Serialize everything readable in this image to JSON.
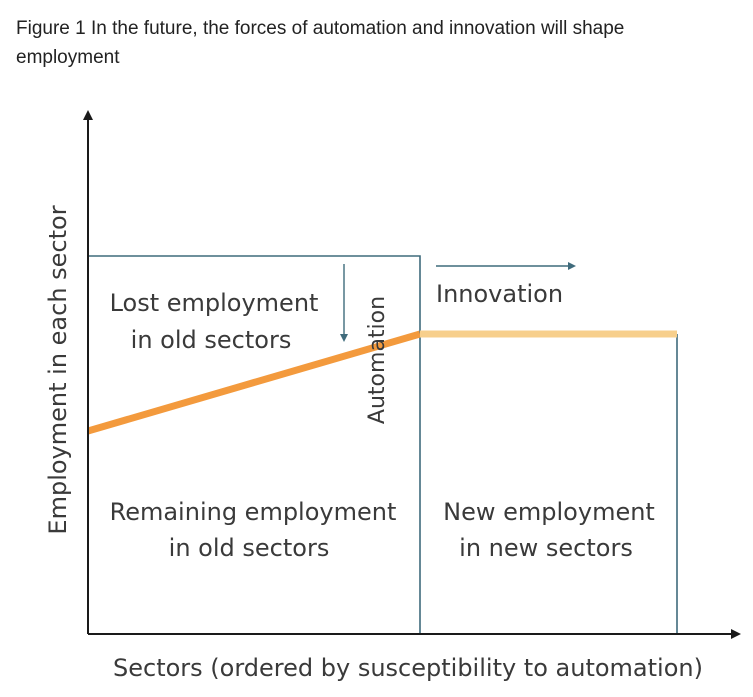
{
  "caption": {
    "line1": "Figure 1 In the future, the forces of automation and innovation will shape",
    "line2": "employment"
  },
  "diagram": {
    "y_axis_label": "Employment in each sector",
    "x_axis_label": "Sectors (ordered by susceptibility to automation)",
    "lost_employment": {
      "line1": "Lost employment",
      "line2": "in old sectors"
    },
    "automation_label": "Automation",
    "innovation_label": "Innovation",
    "remaining_employment": {
      "line1": "Remaining employment",
      "line2": "in old sectors"
    },
    "new_employment": {
      "line1": "New employment",
      "line2": "in new sectors"
    },
    "colors": {
      "axis": "#1a1a1a",
      "box": "#3f6b7c",
      "automation_line": "#f39a3d",
      "innovation_line": "#f7cf8c",
      "arrow": "#3f6b7c"
    }
  }
}
